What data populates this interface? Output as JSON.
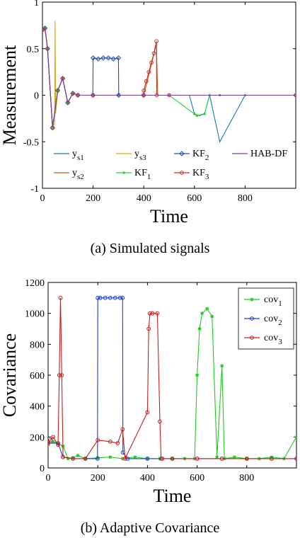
{
  "chart_data": [
    {
      "type": "line",
      "caption": "(a) Simulated signals",
      "xlabel": "Time",
      "ylabel": "Measurement",
      "xlim": [
        0,
        1000
      ],
      "ylim": [
        -1,
        1
      ],
      "xticks": [
        "0",
        "200",
        "400",
        "600",
        "800"
      ],
      "yticks": [
        "1",
        "0.5",
        "0",
        "-0.5",
        "-1"
      ],
      "legend_position": "lower",
      "series": [
        {
          "name": "y",
          "sub": "s1",
          "color": "#1f77b4",
          "marker": "none",
          "x": [
            0,
            10,
            20,
            40,
            60,
            80,
            100,
            120,
            140,
            200,
            300,
            400,
            500,
            580,
            600,
            620,
            640,
            660,
            700,
            800,
            1000
          ],
          "y": [
            0.7,
            0.72,
            0.5,
            -0.35,
            0.05,
            0.18,
            -0.08,
            0.02,
            0.0,
            0.0,
            0.0,
            0.0,
            0.0,
            0.0,
            -0.2,
            -0.22,
            -0.2,
            0.0,
            -0.5,
            0.0,
            0.0
          ]
        },
        {
          "name": "y",
          "sub": "s2",
          "color": "#d95319",
          "marker": "none",
          "x": [
            0,
            10,
            20,
            40,
            60,
            80,
            100,
            120,
            140,
            200,
            300,
            400,
            450,
            455,
            500,
            700,
            1000
          ],
          "y": [
            0.7,
            0.72,
            0.5,
            -0.35,
            0.05,
            0.18,
            -0.08,
            0.02,
            0.0,
            0.0,
            0.0,
            0.0,
            0.55,
            0.0,
            0.0,
            0.0,
            0.0
          ]
        },
        {
          "name": "y",
          "sub": "s3",
          "color": "#c9b200",
          "marker": "none",
          "x": [
            0,
            10,
            20,
            40,
            48,
            50,
            52,
            60,
            80,
            100,
            120,
            140,
            200,
            300,
            1000
          ],
          "y": [
            0.7,
            0.72,
            0.5,
            -0.35,
            -0.3,
            0.8,
            -0.2,
            0.05,
            0.18,
            -0.08,
            0.02,
            0.0,
            0.0,
            0.0,
            0.0
          ]
        },
        {
          "name": "KF",
          "sub": "1",
          "color": "#2ecc40",
          "marker": "dot",
          "x": [
            0,
            10,
            20,
            40,
            60,
            80,
            100,
            120,
            140,
            200,
            300,
            400,
            500,
            600,
            610,
            640,
            660,
            700,
            800,
            1000
          ],
          "y": [
            0.7,
            0.72,
            0.5,
            -0.35,
            0.05,
            0.18,
            -0.08,
            0.02,
            0.0,
            0.0,
            0.0,
            0.0,
            0.0,
            -0.2,
            -0.22,
            -0.2,
            0.0,
            0.0,
            0.0,
            0.0
          ]
        },
        {
          "name": "KF",
          "sub": "2",
          "color": "#1f4fb4",
          "marker": "diamond",
          "x": [
            0,
            10,
            20,
            40,
            60,
            80,
            100,
            120,
            140,
            199,
            200,
            220,
            240,
            260,
            280,
            300,
            301,
            400,
            1000
          ],
          "y": [
            0.7,
            0.72,
            0.5,
            -0.35,
            0.05,
            0.18,
            -0.08,
            0.02,
            0.0,
            0.0,
            0.4,
            0.39,
            0.4,
            0.4,
            0.39,
            0.4,
            0.0,
            0.0,
            0.0
          ]
        },
        {
          "name": "KF",
          "sub": "3",
          "color": "#c0392b",
          "marker": "circle",
          "x": [
            0,
            10,
            20,
            40,
            60,
            80,
            100,
            120,
            140,
            200,
            399,
            400,
            410,
            420,
            430,
            440,
            450,
            451,
            500,
            1000
          ],
          "y": [
            0.7,
            0.72,
            0.5,
            -0.35,
            0.05,
            0.18,
            -0.08,
            0.02,
            0.0,
            0.0,
            0.0,
            0.05,
            0.15,
            0.25,
            0.35,
            0.45,
            0.58,
            0.0,
            0.0,
            0.0
          ]
        },
        {
          "name": "HAB-DF",
          "sub": "",
          "color": "#7b3fa0",
          "marker": "none",
          "x": [
            0,
            10,
            20,
            40,
            60,
            80,
            100,
            120,
            140,
            200,
            400,
            600,
            800,
            1000
          ],
          "y": [
            0.7,
            0.72,
            0.5,
            -0.35,
            0.05,
            0.18,
            -0.08,
            0.02,
            0.0,
            0.0,
            0.0,
            0.0,
            0.0,
            0.0
          ]
        }
      ]
    },
    {
      "type": "line",
      "caption": "(b) Adaptive Covariance",
      "xlabel": "Time",
      "ylabel": "Covariance",
      "xlim": [
        0,
        1000
      ],
      "ylim": [
        0,
        1200
      ],
      "xticks": [
        "0",
        "200",
        "400",
        "600",
        "800"
      ],
      "yticks": [
        "1200",
        "1000",
        "800",
        "600",
        "400",
        "200",
        "0"
      ],
      "legend_position": "top-right",
      "series": [
        {
          "name": "cov",
          "sub": "1",
          "color": "#22c722",
          "marker": "star",
          "x": [
            0,
            20,
            40,
            60,
            80,
            100,
            120,
            150,
            200,
            250,
            300,
            350,
            400,
            450,
            500,
            550,
            590,
            600,
            610,
            620,
            640,
            660,
            680,
            700,
            710,
            750,
            800,
            850,
            900,
            950,
            1000
          ],
          "y": [
            150,
            170,
            160,
            140,
            60,
            65,
            80,
            60,
            65,
            70,
            60,
            70,
            60,
            60,
            60,
            60,
            60,
            600,
            900,
            1000,
            1030,
            980,
            70,
            660,
            60,
            70,
            60,
            60,
            70,
            60,
            200
          ]
        },
        {
          "name": "cov",
          "sub": "2",
          "color": "#1f3fd0",
          "marker": "circle",
          "x": [
            0,
            40,
            60,
            100,
            150,
            199,
            200,
            210,
            230,
            250,
            270,
            290,
            300,
            301,
            320,
            400,
            500,
            600,
            700,
            800,
            900,
            1000
          ],
          "y": [
            160,
            160,
            70,
            60,
            60,
            60,
            1100,
            1100,
            1100,
            1100,
            1100,
            1100,
            1100,
            100,
            60,
            60,
            60,
            60,
            60,
            60,
            60,
            60
          ]
        },
        {
          "name": "cov",
          "sub": "3",
          "color": "#c81e1e",
          "marker": "circle",
          "x": [
            0,
            10,
            20,
            40,
            45,
            50,
            55,
            60,
            100,
            150,
            200,
            250,
            280,
            300,
            310,
            400,
            405,
            410,
            420,
            440,
            450,
            455,
            460,
            500,
            600,
            700,
            800,
            900,
            1000
          ],
          "y": [
            160,
            180,
            200,
            150,
            600,
            1100,
            600,
            70,
            60,
            60,
            180,
            170,
            160,
            250,
            60,
            360,
            900,
            1000,
            1000,
            1000,
            300,
            60,
            60,
            60,
            60,
            60,
            60,
            60,
            60
          ]
        }
      ]
    }
  ]
}
